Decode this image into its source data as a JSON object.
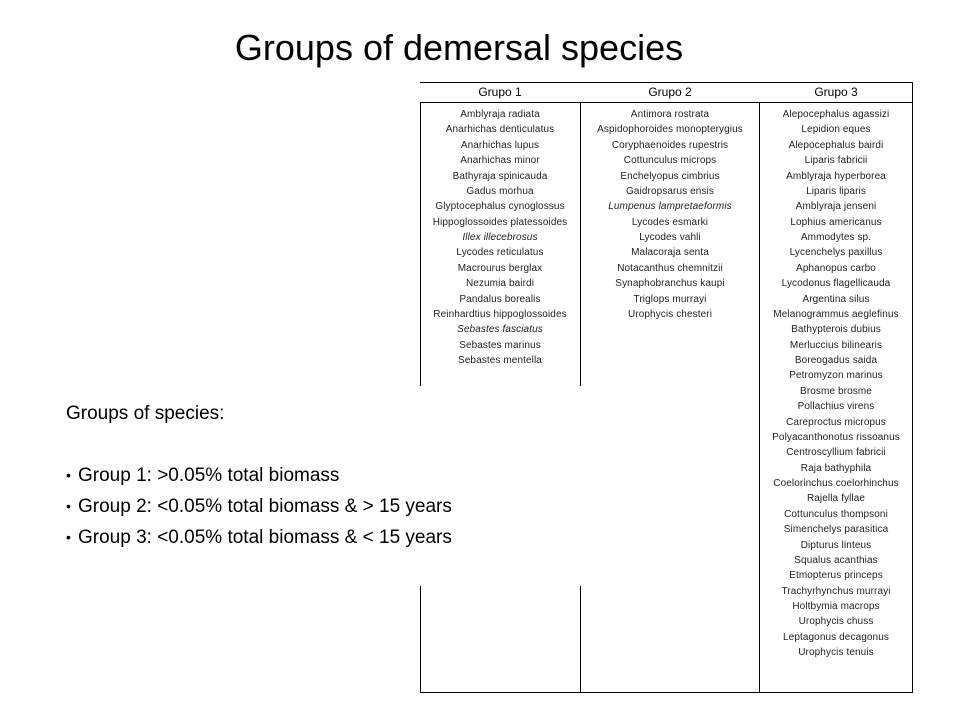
{
  "title": "Groups of demersal species",
  "table": {
    "headers": [
      "Grupo 1",
      "Grupo 2",
      "Grupo 3"
    ],
    "grupo1": [
      {
        "name": "Amblyraja radiata"
      },
      {
        "name": "Anarhichas denticulatus"
      },
      {
        "name": "Anarhichas lupus"
      },
      {
        "name": "Anarhichas minor"
      },
      {
        "name": "Bathyraja spinicauda"
      },
      {
        "name": "Gadus morhua"
      },
      {
        "name": "Glyptocephalus cynoglossus"
      },
      {
        "name": "Hippoglossoides platessoides"
      },
      {
        "name": "Illex illecebrosus",
        "italic": true
      },
      {
        "name": "Lycodes reticulatus"
      },
      {
        "name": "Macrourus berglax"
      },
      {
        "name": "Nezumia bairdi"
      },
      {
        "name": "Pandalus borealis"
      },
      {
        "name": "Reinhardtius hippoglossoides"
      },
      {
        "name": "Sebastes fasciatus",
        "italic": true
      },
      {
        "name": "Sebastes marinus"
      },
      {
        "name": "Sebastes mentella"
      }
    ],
    "grupo2": [
      {
        "name": "Antimora rostrata"
      },
      {
        "name": "Aspidophoroides monopterygius"
      },
      {
        "name": "Coryphaenoides rupestris"
      },
      {
        "name": "Cottunculus microps"
      },
      {
        "name": "Enchelyopus cimbrius"
      },
      {
        "name": "Gaidropsarus ensis"
      },
      {
        "name": "Lumpenus lampretaeformis",
        "italic": true
      },
      {
        "name": "Lycodes esmarki"
      },
      {
        "name": "Lycodes vahli"
      },
      {
        "name": "Malacoraja senta"
      },
      {
        "name": "Notacanthus chemnitzii"
      },
      {
        "name": "Synaphobranchus kaupi"
      },
      {
        "name": "Triglops murrayi"
      },
      {
        "name": "Urophycis chesteri"
      }
    ],
    "grupo3": [
      {
        "name": "Alepocephalus agassizi"
      },
      {
        "name": "Lepidion eques"
      },
      {
        "name": "Alepocephalus bairdi"
      },
      {
        "name": "Liparis fabricii"
      },
      {
        "name": "Amblyraja hyperborea"
      },
      {
        "name": "Liparis liparis"
      },
      {
        "name": "Amblyraja jenseni"
      },
      {
        "name": "Lophius americanus"
      },
      {
        "name": "Ammodytes sp."
      },
      {
        "name": "Lycenchelys paxillus"
      },
      {
        "name": "Aphanopus carbo"
      },
      {
        "name": "Lycodonus flagellicauda"
      },
      {
        "name": "Argentina silus"
      },
      {
        "name": "Melanogrammus aeglefinus"
      },
      {
        "name": "Bathypterois dubius"
      },
      {
        "name": "Merluccius bilinearis"
      },
      {
        "name": "Boreogadus saida"
      },
      {
        "name": "Petromyzon marinus"
      },
      {
        "name": "Brosme brosme"
      },
      {
        "name": "Pollachius virens"
      },
      {
        "name": "Careproctus micropus"
      },
      {
        "name": "Polyacanthonotus rissoanus"
      },
      {
        "name": "Centroscyllium fabricii"
      },
      {
        "name": "Raja bathyphila"
      },
      {
        "name": "Coelorinchus coelorhinchus"
      },
      {
        "name": "Rajella fyllae"
      },
      {
        "name": "Cottunculus thompsoni"
      },
      {
        "name": "Simenchelys parasitica"
      },
      {
        "name": "Dipturus linteus"
      },
      {
        "name": "Squalus acanthias"
      },
      {
        "name": "Etmopterus princeps"
      },
      {
        "name": "Trachyrhynchus murrayi"
      },
      {
        "name": "Holtbymia macrops"
      },
      {
        "name": "Urophycis chuss"
      },
      {
        "name": "Leptagonus decagonus"
      },
      {
        "name": "Urophycis tenuis"
      }
    ]
  },
  "notes": {
    "heading": "Groups of species:",
    "bullets": [
      "Group 1: >0.05% total biomass",
      "Group 2: <0.05% total biomass & > 15 years",
      "Group 3: <0.05% total biomass & < 15 years"
    ]
  }
}
